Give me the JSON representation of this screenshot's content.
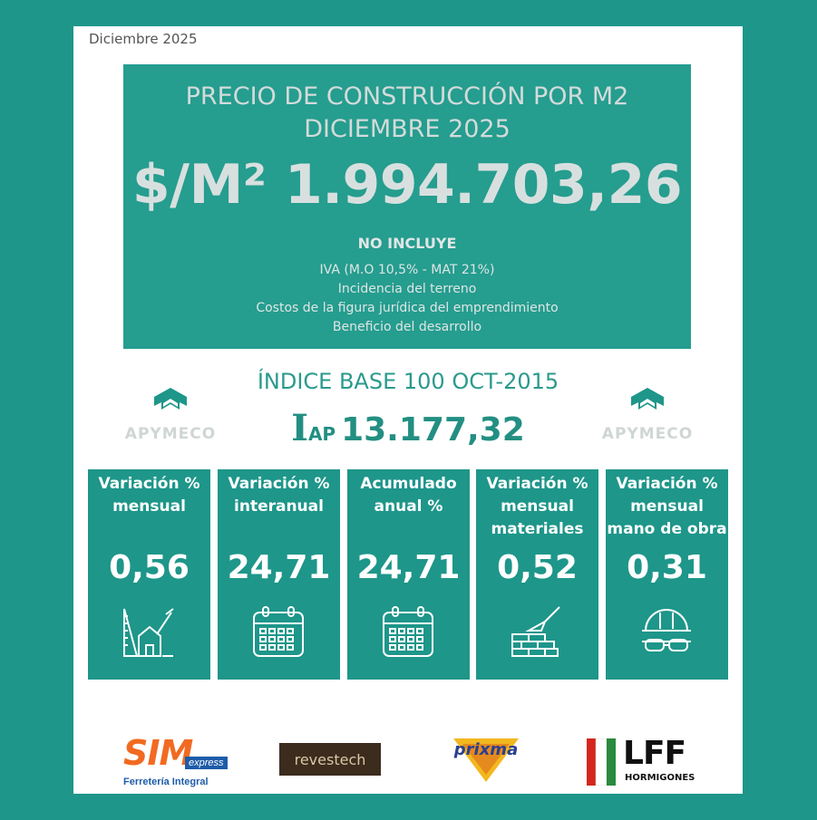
{
  "date_label": "Diciembre 2025",
  "hero": {
    "title_line1": "PRECIO DE CONSTRUCCIÓN POR M2",
    "title_line2": "DICIEMBRE 2025",
    "price": "$/M² 1.994.703,26",
    "exclusions_title": "NO INCLUYE",
    "exclusions": [
      "IVA (M.O 10,5% - MAT 21%)",
      "Incidencia del terreno",
      "Costos de la figura jurídica del emprendimiento",
      "Beneficio del desarrollo"
    ]
  },
  "index": {
    "title": "ÍNDICE BASE 100 OCT-2015",
    "symbol": "I",
    "subscript": "AP",
    "value": "13.177,32"
  },
  "logo_text": "APYMECO",
  "tiles": [
    {
      "label": "Variación % mensual",
      "value": "0,56",
      "icon": "construction-plan-icon"
    },
    {
      "label": "Variación % interanual",
      "value": "24,71",
      "icon": "calendar-icon"
    },
    {
      "label": "Acumulado anual %",
      "value": "24,71",
      "icon": "calendar-icon"
    },
    {
      "label": "Variación % mensual materiales",
      "value": "0,52",
      "icon": "bricks-trowel-icon"
    },
    {
      "label": "Variación % mensual mano de obra",
      "value": "0,31",
      "icon": "helmet-goggles-icon"
    }
  ],
  "sponsors": {
    "sim": {
      "brand": "SIM",
      "tag": "express",
      "sub": "Ferretería Integral"
    },
    "revestech": {
      "brand": "revestech"
    },
    "prixma": {
      "brand": "prixma"
    },
    "lff": {
      "brand": "LFF",
      "sub": "HORMIGONES"
    }
  },
  "colors": {
    "teal": "#1e968a",
    "hero_teal": "#259d8f",
    "sim_orange": "#f26a21",
    "sim_blue": "#1d5ca8",
    "lff_red": "#d4261f",
    "lff_green": "#2a8a3e"
  }
}
